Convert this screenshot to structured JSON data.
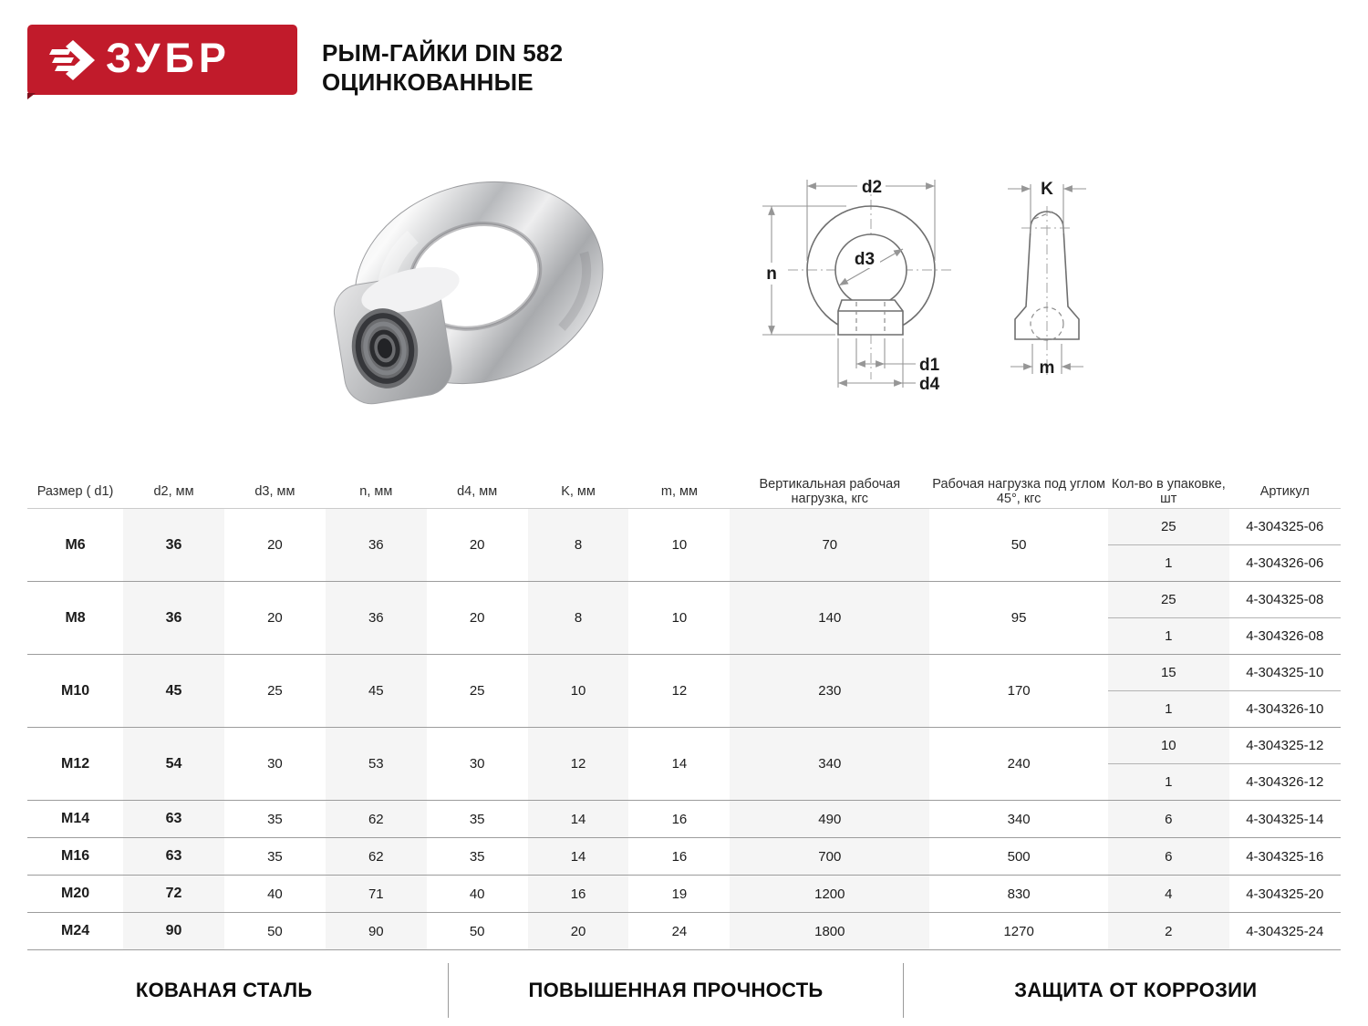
{
  "brand": {
    "name": "ЗУБР"
  },
  "header": {
    "title_line1": "РЫМ-ГАЙКИ DIN 582",
    "title_line2": "ОЦИНКОВАННЫЕ"
  },
  "colors": {
    "brand_red": "#c11b2b",
    "brand_red_dark": "#7e0f1c",
    "column_shade": "#f5f5f5",
    "row_line": "#9c9c9c",
    "header_line": "#cbcbcb",
    "drawing_line": "#6f6f6f",
    "dimension_line": "#969696"
  },
  "drawing": {
    "front": {
      "d2": "d2",
      "d3": "d3",
      "n": "n",
      "d1": "d1",
      "d4": "d4"
    },
    "side": {
      "K": "K",
      "m": "m"
    }
  },
  "table": {
    "columns": [
      "Размер ( d1)",
      "d2, мм",
      "d3, мм",
      "n, мм",
      "d4, мм",
      "K, мм",
      "m, мм",
      "Вертикальная рабочая нагрузка, кгс",
      "Рабочая нагрузка под углом 45°, кгс",
      "Кол-во в упаковке, шт",
      "Артикул"
    ],
    "rows": [
      {
        "size": "M6",
        "d2": "36",
        "d3": "20",
        "n": "36",
        "d4": "20",
        "k": "8",
        "m": "10",
        "vload": "70",
        "aload": "50",
        "packs": [
          {
            "qty": "25",
            "art": "4-304325-06"
          },
          {
            "qty": "1",
            "art": "4-304326-06"
          }
        ]
      },
      {
        "size": "M8",
        "d2": "36",
        "d3": "20",
        "n": "36",
        "d4": "20",
        "k": "8",
        "m": "10",
        "vload": "140",
        "aload": "95",
        "packs": [
          {
            "qty": "25",
            "art": "4-304325-08"
          },
          {
            "qty": "1",
            "art": "4-304326-08"
          }
        ]
      },
      {
        "size": "M10",
        "d2": "45",
        "d3": "25",
        "n": "45",
        "d4": "25",
        "k": "10",
        "m": "12",
        "vload": "230",
        "aload": "170",
        "packs": [
          {
            "qty": "15",
            "art": "4-304325-10"
          },
          {
            "qty": "1",
            "art": "4-304326-10"
          }
        ]
      },
      {
        "size": "M12",
        "d2": "54",
        "d3": "30",
        "n": "53",
        "d4": "30",
        "k": "12",
        "m": "14",
        "vload": "340",
        "aload": "240",
        "packs": [
          {
            "qty": "10",
            "art": "4-304325-12"
          },
          {
            "qty": "1",
            "art": "4-304326-12"
          }
        ]
      },
      {
        "size": "M14",
        "d2": "63",
        "d3": "35",
        "n": "62",
        "d4": "35",
        "k": "14",
        "m": "16",
        "vload": "490",
        "aload": "340",
        "packs": [
          {
            "qty": "6",
            "art": "4-304325-14"
          }
        ]
      },
      {
        "size": "M16",
        "d2": "63",
        "d3": "35",
        "n": "62",
        "d4": "35",
        "k": "14",
        "m": "16",
        "vload": "700",
        "aload": "500",
        "packs": [
          {
            "qty": "6",
            "art": "4-304325-16"
          }
        ]
      },
      {
        "size": "M20",
        "d2": "72",
        "d3": "40",
        "n": "71",
        "d4": "40",
        "k": "16",
        "m": "19",
        "vload": "1200",
        "aload": "830",
        "packs": [
          {
            "qty": "4",
            "art": "4-304325-20"
          }
        ]
      },
      {
        "size": "M24",
        "d2": "90",
        "d3": "50",
        "n": "90",
        "d4": "50",
        "k": "20",
        "m": "24",
        "vload": "1800",
        "aload": "1270",
        "packs": [
          {
            "qty": "2",
            "art": "4-304325-24"
          }
        ]
      }
    ]
  },
  "features": [
    "КОВАНАЯ СТАЛЬ",
    "ПОВЫШЕННАЯ ПРОЧНОСТЬ",
    "ЗАЩИТА ОТ КОРРОЗИИ"
  ]
}
